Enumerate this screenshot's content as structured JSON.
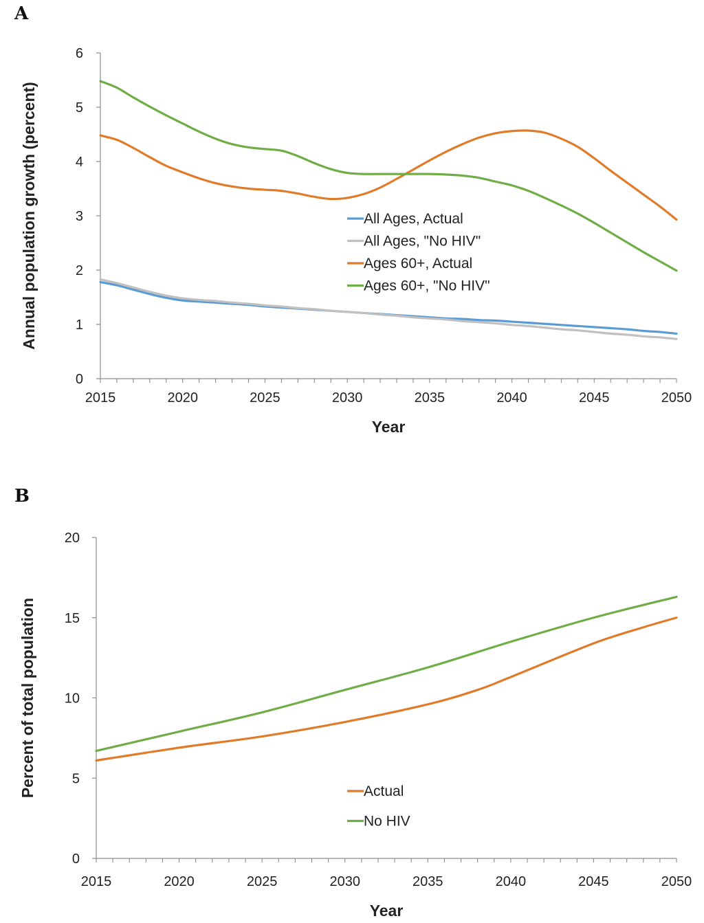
{
  "chart_data": [
    {
      "panel": "A",
      "type": "line",
      "title": "",
      "xlabel": "Year",
      "ylabel": "Annual population growth (percent)",
      "xlim": [
        2015,
        2050
      ],
      "ylim": [
        0,
        6
      ],
      "xticks": [
        2015,
        2020,
        2025,
        2030,
        2035,
        2040,
        2045,
        2050
      ],
      "yticks": [
        0,
        1,
        2,
        3,
        4,
        5,
        6
      ],
      "legend_position": "center",
      "series": [
        {
          "name": "All Ages, Actual",
          "color": "#5b9bd5",
          "x": [
            2015,
            2016,
            2017,
            2018,
            2019,
            2020,
            2021,
            2022,
            2023,
            2024,
            2025,
            2026,
            2027,
            2028,
            2029,
            2030,
            2031,
            2032,
            2033,
            2034,
            2035,
            2036,
            2037,
            2038,
            2039,
            2040,
            2041,
            2042,
            2043,
            2044,
            2045,
            2046,
            2047,
            2048,
            2049,
            2050
          ],
          "values": [
            1.78,
            1.72,
            1.64,
            1.56,
            1.49,
            1.44,
            1.42,
            1.4,
            1.38,
            1.36,
            1.33,
            1.31,
            1.29,
            1.27,
            1.25,
            1.23,
            1.21,
            1.19,
            1.17,
            1.15,
            1.13,
            1.11,
            1.1,
            1.08,
            1.07,
            1.05,
            1.03,
            1.01,
            0.99,
            0.97,
            0.95,
            0.93,
            0.91,
            0.88,
            0.86,
            0.83
          ]
        },
        {
          "name": "All Ages, \"No HIV\"",
          "color": "#c0c0c0",
          "x": [
            2015,
            2016,
            2017,
            2018,
            2019,
            2020,
            2021,
            2022,
            2023,
            2024,
            2025,
            2026,
            2027,
            2028,
            2029,
            2030,
            2031,
            2032,
            2033,
            2034,
            2035,
            2036,
            2037,
            2038,
            2039,
            2040,
            2041,
            2042,
            2043,
            2044,
            2045,
            2046,
            2047,
            2048,
            2049,
            2050
          ],
          "values": [
            1.83,
            1.76,
            1.68,
            1.6,
            1.53,
            1.48,
            1.45,
            1.43,
            1.4,
            1.38,
            1.35,
            1.33,
            1.3,
            1.28,
            1.25,
            1.23,
            1.21,
            1.18,
            1.16,
            1.13,
            1.11,
            1.09,
            1.06,
            1.04,
            1.02,
            0.99,
            0.97,
            0.94,
            0.91,
            0.89,
            0.86,
            0.83,
            0.81,
            0.78,
            0.76,
            0.73
          ]
        },
        {
          "name": "Ages 60+, Actual",
          "color": "#e07b2a",
          "x": [
            2015,
            2016,
            2017,
            2018,
            2019,
            2020,
            2021,
            2022,
            2023,
            2024,
            2025,
            2026,
            2027,
            2028,
            2029,
            2030,
            2031,
            2032,
            2033,
            2034,
            2035,
            2036,
            2037,
            2038,
            2039,
            2040,
            2041,
            2042,
            2043,
            2044,
            2045,
            2046,
            2047,
            2048,
            2049,
            2050
          ],
          "values": [
            4.48,
            4.4,
            4.25,
            4.08,
            3.92,
            3.8,
            3.69,
            3.6,
            3.54,
            3.5,
            3.48,
            3.46,
            3.41,
            3.35,
            3.31,
            3.33,
            3.4,
            3.52,
            3.68,
            3.85,
            4.02,
            4.18,
            4.32,
            4.44,
            4.52,
            4.56,
            4.57,
            4.53,
            4.42,
            4.27,
            4.06,
            3.83,
            3.61,
            3.39,
            3.17,
            2.93
          ]
        },
        {
          "name": "Ages 60+, \"No HIV\"",
          "color": "#70ad47",
          "x": [
            2015,
            2016,
            2017,
            2018,
            2019,
            2020,
            2021,
            2022,
            2023,
            2024,
            2025,
            2026,
            2027,
            2028,
            2029,
            2030,
            2031,
            2032,
            2033,
            2034,
            2035,
            2036,
            2037,
            2038,
            2039,
            2040,
            2041,
            2042,
            2043,
            2044,
            2045,
            2046,
            2047,
            2048,
            2049,
            2050
          ],
          "values": [
            5.48,
            5.36,
            5.18,
            5.01,
            4.85,
            4.7,
            4.55,
            4.42,
            4.32,
            4.26,
            4.23,
            4.2,
            4.1,
            3.97,
            3.86,
            3.79,
            3.77,
            3.77,
            3.77,
            3.77,
            3.77,
            3.76,
            3.74,
            3.7,
            3.63,
            3.56,
            3.46,
            3.33,
            3.19,
            3.04,
            2.87,
            2.69,
            2.51,
            2.33,
            2.16,
            1.99
          ]
        }
      ]
    },
    {
      "panel": "B",
      "type": "line",
      "title": "",
      "xlabel": "Year",
      "ylabel": "Percent of total population",
      "xlim": [
        2015,
        2050
      ],
      "ylim": [
        0,
        20
      ],
      "xticks": [
        2015,
        2020,
        2025,
        2030,
        2035,
        2040,
        2045,
        2050
      ],
      "yticks": [
        0,
        5,
        10,
        15,
        20
      ],
      "legend_position": "bottom-center",
      "series": [
        {
          "name": "Actual",
          "color": "#e07b2a",
          "x": [
            2015,
            2020,
            2025,
            2030,
            2035,
            2038,
            2040,
            2045,
            2048,
            2050
          ],
          "values": [
            6.1,
            6.9,
            7.6,
            8.5,
            9.6,
            10.5,
            11.3,
            13.4,
            14.4,
            15.0
          ]
        },
        {
          "name": "No HIV",
          "color": "#70ad47",
          "x": [
            2015,
            2020,
            2025,
            2030,
            2035,
            2040,
            2045,
            2050
          ],
          "values": [
            6.7,
            7.9,
            9.1,
            10.5,
            11.9,
            13.5,
            15.0,
            16.3
          ]
        }
      ]
    }
  ]
}
